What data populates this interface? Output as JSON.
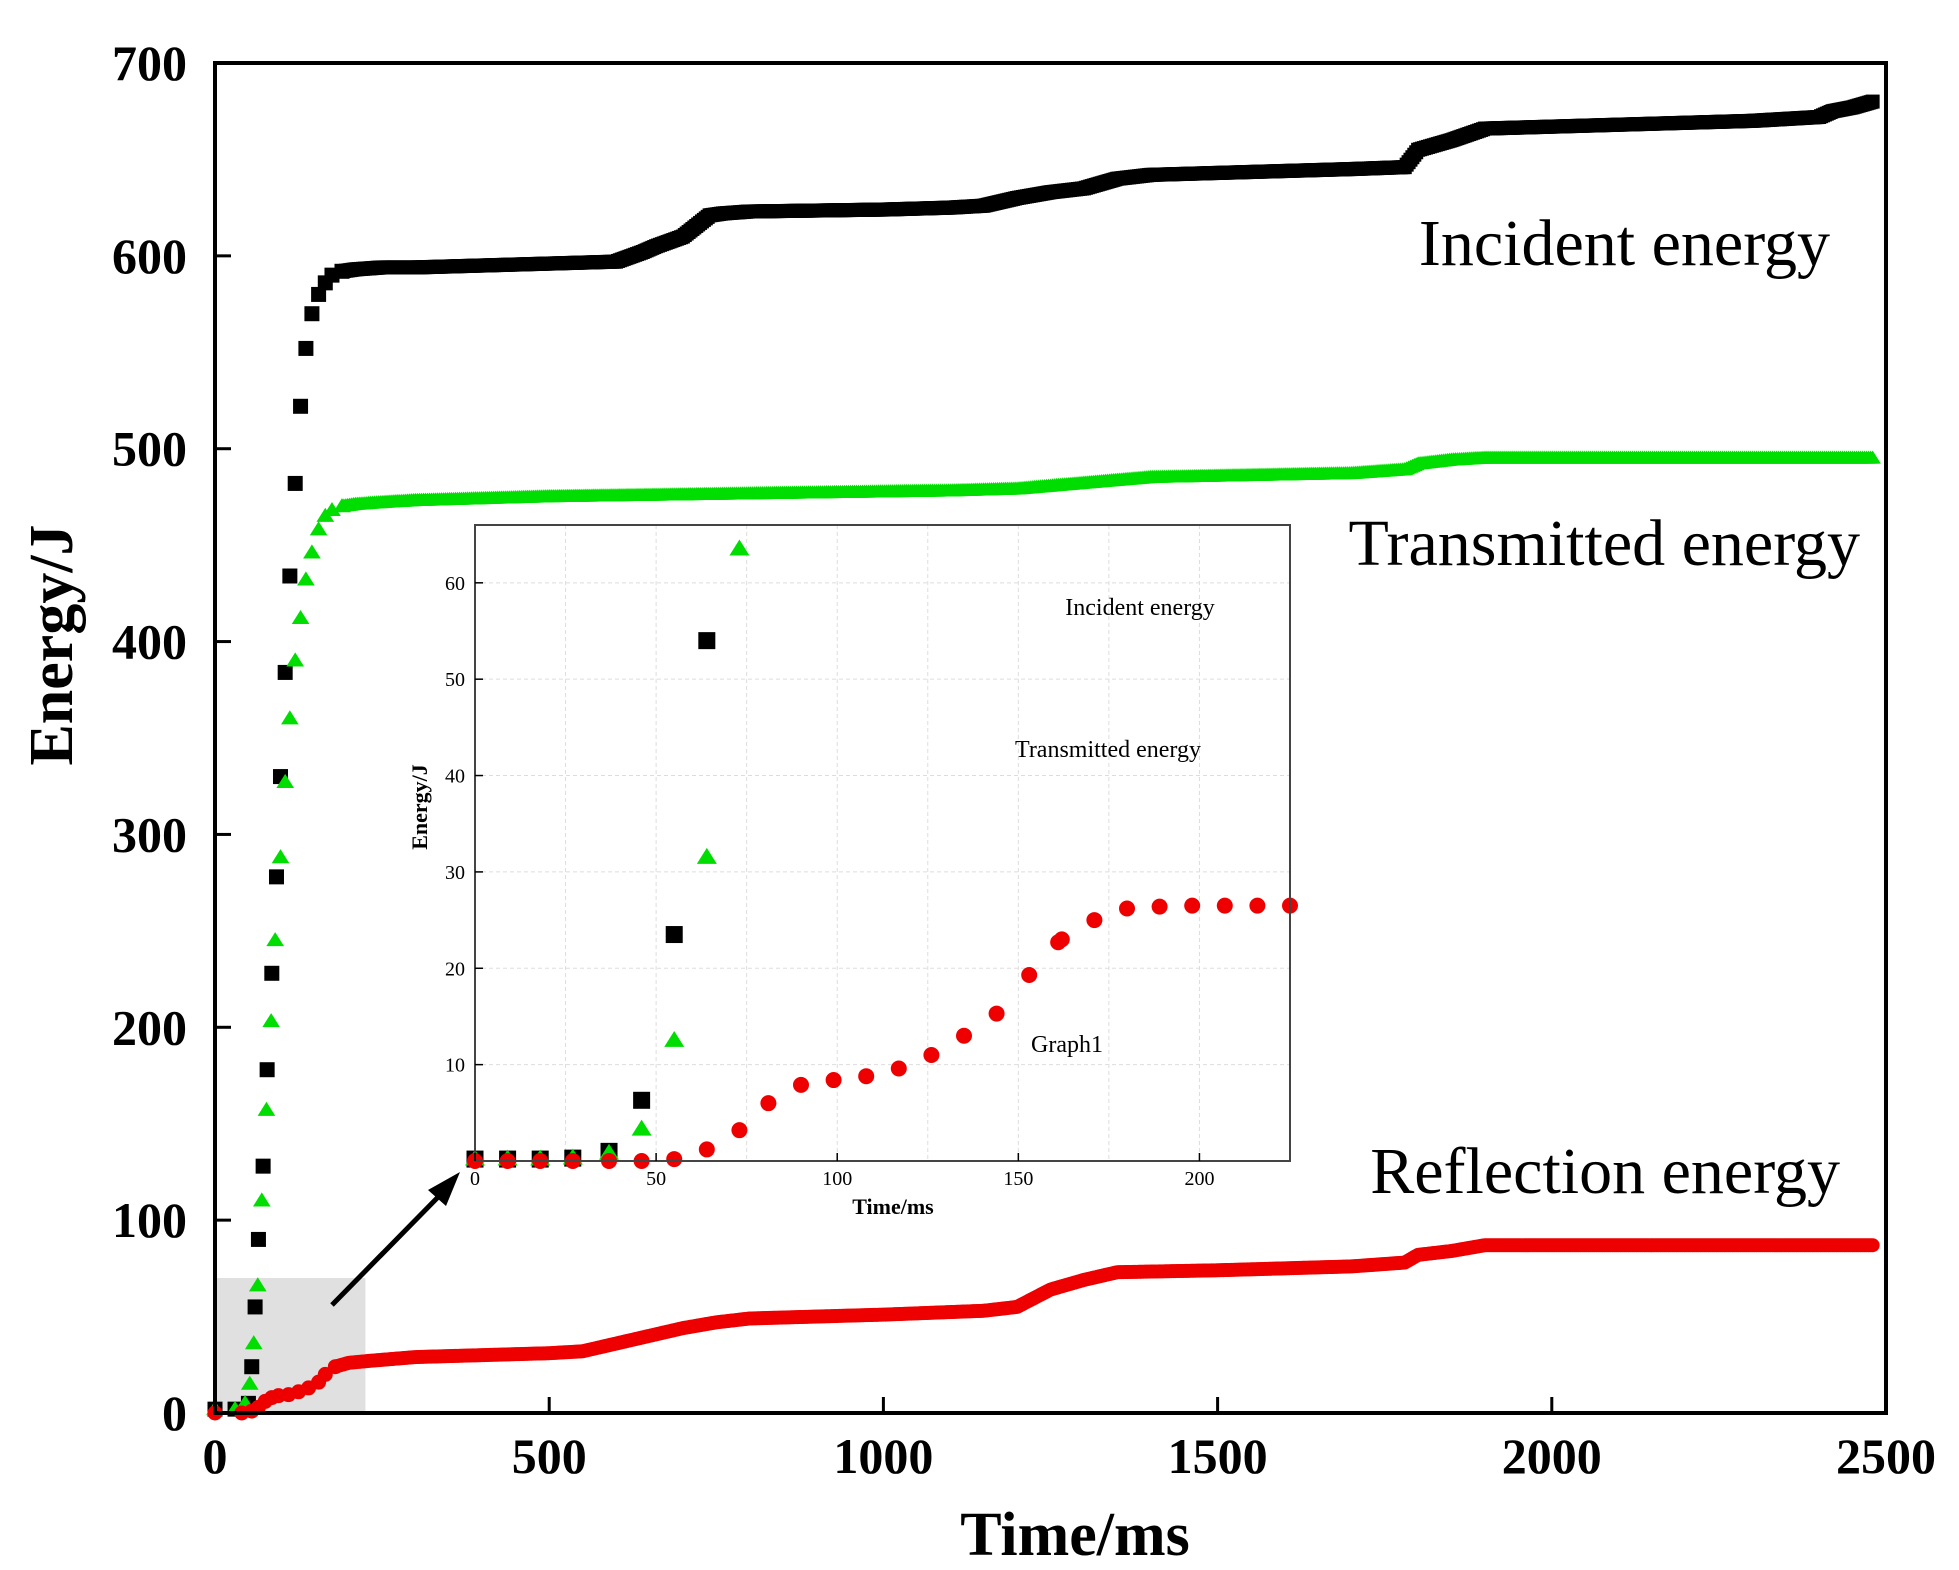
{
  "chart_data": [
    {
      "type": "scatter",
      "title": "",
      "xlabel": "Time/ms",
      "ylabel": "Energy/J",
      "xlim": [
        0,
        2500
      ],
      "ylim": [
        0,
        700
      ],
      "xticks": [
        "0",
        "500",
        "1000",
        "1500",
        "2000",
        "2500"
      ],
      "yticks": [
        "0",
        "100",
        "200",
        "300",
        "400",
        "500",
        "600",
        "700"
      ],
      "grid": false,
      "series": [
        {
          "name": "Incident energy",
          "marker": "square",
          "color": "#000000",
          "x": [
            0,
            30,
            50,
            55,
            60,
            65,
            72,
            78,
            85,
            92,
            98,
            105,
            112,
            120,
            128,
            136,
            145,
            155,
            165,
            175,
            190,
            210,
            250,
            300,
            400,
            500,
            600,
            640,
            660,
            700,
            740,
            760,
            800,
            1000,
            1100,
            1150,
            1200,
            1250,
            1300,
            1350,
            1400,
            1500,
            1700,
            1780,
            1800,
            1850,
            1900,
            2100,
            2300,
            2400,
            2420,
            2450,
            2480
          ],
          "values": [
            2,
            2,
            5,
            24,
            55,
            90,
            128,
            178,
            228,
            278,
            330,
            384,
            434,
            482,
            522,
            552,
            570,
            580,
            586,
            590,
            592,
            593,
            594,
            594,
            595,
            596,
            597,
            602,
            605,
            610,
            621,
            622,
            623,
            624,
            625,
            626,
            630,
            633,
            635,
            640,
            642,
            643,
            645,
            646,
            655,
            660,
            666,
            668,
            670,
            672,
            675,
            677,
            680
          ]
        },
        {
          "name": "Transmitted energy",
          "marker": "triangle",
          "color": "#00dd00",
          "x": [
            0,
            30,
            45,
            52,
            58,
            64,
            70,
            77,
            84,
            90,
            98,
            105,
            112,
            120,
            128,
            136,
            145,
            155,
            165,
            175,
            190,
            210,
            250,
            300,
            500,
            700,
            900,
            1100,
            1200,
            1300,
            1400,
            1700,
            1780,
            1800,
            1850,
            1900,
            2100,
            2300,
            2480
          ],
          "values": [
            2,
            2,
            5,
            15,
            36,
            66,
            110,
            157,
            203,
            245,
            288,
            327,
            360,
            390,
            412,
            432,
            446,
            458,
            465,
            468,
            470,
            471,
            472,
            473,
            475,
            476,
            477,
            478,
            479,
            482,
            485,
            487,
            489,
            492,
            494,
            495,
            495,
            495,
            495
          ]
        },
        {
          "name": "Reflection energy",
          "marker": "circle",
          "color": "#ee0000",
          "x": [
            0,
            40,
            55,
            65,
            75,
            85,
            95,
            110,
            125,
            140,
            155,
            165,
            180,
            200,
            230,
            300,
            400,
            500,
            550,
            600,
            650,
            700,
            750,
            800,
            1000,
            1150,
            1200,
            1250,
            1300,
            1350,
            1500,
            1700,
            1780,
            1800,
            1850,
            1900,
            2100,
            2300,
            2480
          ],
          "values": [
            0,
            0,
            1,
            3,
            6,
            8,
            9,
            9.5,
            11,
            13,
            16,
            20,
            24,
            26,
            27,
            29,
            30,
            31,
            32,
            36,
            40,
            44,
            47,
            49,
            51,
            53,
            55,
            64,
            69,
            73,
            74,
            76,
            78,
            82,
            84,
            87,
            87,
            87,
            87
          ]
        }
      ],
      "annotations": [
        "Incident energy",
        "Transmitted energy",
        "Reflection energy"
      ],
      "highlight_region": {
        "x": [
          0,
          225
        ],
        "y": [
          0,
          70
        ]
      }
    },
    {
      "type": "scatter",
      "title": "Graph1",
      "xlabel": "Time/ms",
      "ylabel": "Energy/J",
      "xlim": [
        0,
        225
      ],
      "ylim": [
        0,
        66
      ],
      "xticks": [
        "0",
        "50",
        "100",
        "150",
        "200"
      ],
      "yticks": [
        "10",
        "20",
        "30",
        "40",
        "50",
        "60"
      ],
      "grid": true,
      "series": [
        {
          "name": "Incident energy",
          "marker": "square",
          "color": "#000000",
          "x": [
            0,
            9,
            18,
            27,
            37,
            46,
            55,
            64
          ],
          "values": [
            0.2,
            0.2,
            0.2,
            0.3,
            1.0,
            6.3,
            23.5,
            54
          ]
        },
        {
          "name": "Transmitted energy",
          "marker": "triangle",
          "color": "#00dd00",
          "x": [
            0,
            9,
            18,
            27,
            37,
            46,
            55,
            64,
            73
          ],
          "values": [
            0.2,
            0.2,
            0.2,
            0.3,
            0.8,
            3.3,
            12.5,
            31.5,
            63.5
          ]
        },
        {
          "name": "Reflection energy",
          "marker": "circle",
          "color": "#ee0000",
          "x": [
            0,
            9,
            18,
            27,
            37,
            46,
            55,
            64,
            73,
            81,
            90,
            99,
            108,
            117,
            126,
            135,
            144,
            153,
            161,
            162,
            171,
            180,
            189,
            198,
            207,
            216,
            225
          ],
          "values": [
            0,
            0,
            0,
            0,
            0,
            0,
            0.2,
            1.2,
            3.2,
            6.0,
            7.9,
            8.4,
            8.8,
            9.6,
            11.0,
            13.0,
            15.3,
            19.3,
            22.7,
            23.0,
            25.0,
            26.2,
            26.4,
            26.5,
            26.5,
            26.5,
            26.5
          ]
        }
      ],
      "annotations": [
        "Incident energy",
        "Transmitted energy",
        "Graph1"
      ]
    }
  ]
}
